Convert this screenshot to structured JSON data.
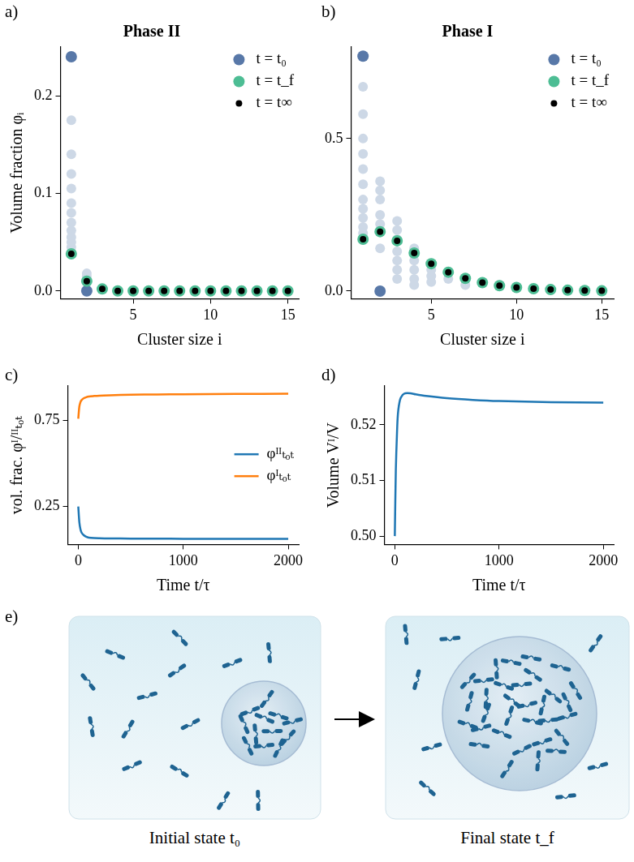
{
  "chart_data": [
    {
      "type": "scatter",
      "panel_label": "a)",
      "title": "Phase II",
      "x_label": "Cluster size i",
      "y_label": "Volume fraction φᵢ",
      "xlim": [
        0.3,
        15.7
      ],
      "xticks": [
        5,
        10,
        15
      ],
      "ylim": [
        -0.008,
        0.25
      ],
      "yticks": [
        {
          "value": 0,
          "label": "0.0"
        },
        0.1,
        0.2
      ],
      "grid": false,
      "legend": "upper right",
      "series": [
        {
          "color": "#cdd8e6",
          "x": [
            1,
            1,
            1,
            1,
            1,
            1,
            1,
            1,
            1,
            1,
            1,
            2,
            2,
            2
          ],
          "values": [
            0.175,
            0.14,
            0.12,
            0.105,
            0.09,
            0.08,
            0.07,
            0.062,
            0.055,
            0.05,
            0.045,
            0.018,
            0.015,
            0.012
          ]
        },
        {
          "name": "t = t₀",
          "color": "#5878a8",
          "x": [
            1,
            2
          ],
          "values": [
            0.24,
            0
          ]
        },
        {
          "name": "t = t_f",
          "color": "#4dbd94",
          "x": [
            1,
            2,
            3,
            4,
            5,
            6,
            7,
            8,
            9,
            10,
            11,
            12,
            13,
            14,
            15
          ],
          "values": [
            0.038,
            0.01,
            0.002,
            0,
            0,
            0,
            0,
            0,
            0,
            0,
            0,
            0,
            0,
            0,
            0
          ]
        },
        {
          "name": "t = t∞",
          "color": "#000000",
          "x": [
            1,
            2,
            3,
            4,
            5,
            6,
            7,
            8,
            9,
            10,
            11,
            12,
            13,
            14,
            15
          ],
          "values": [
            0.038,
            0.01,
            0.002,
            0,
            0,
            0,
            0,
            0,
            0,
            0,
            0,
            0,
            0,
            0,
            0
          ]
        }
      ]
    },
    {
      "type": "scatter",
      "panel_label": "b)",
      "title": "Phase I",
      "x_label": "Cluster size i",
      "xlim": [
        0.3,
        15.7
      ],
      "xticks": [
        5,
        10,
        15
      ],
      "ylim": [
        -0.025,
        0.8
      ],
      "yticks": [
        {
          "value": 0,
          "label": "0.0"
        },
        0.5
      ],
      "grid": false,
      "legend": "upper right",
      "series": [
        {
          "color": "#cdd8e6",
          "x": [
            1,
            1,
            1,
            1,
            1,
            1,
            1,
            1,
            1,
            1,
            1,
            2,
            2,
            2,
            2,
            2,
            2,
            3,
            3,
            3,
            3,
            3,
            3,
            3,
            4,
            4,
            4,
            4,
            4,
            4,
            5,
            5,
            5,
            5,
            6,
            6,
            7,
            7
          ],
          "values": [
            0.67,
            0.58,
            0.5,
            0.45,
            0.4,
            0.35,
            0.3,
            0.27,
            0.24,
            0.21,
            0.19,
            0.36,
            0.33,
            0.3,
            0.25,
            0.22,
            0.14,
            0.23,
            0.2,
            0.17,
            0.13,
            0.1,
            0.07,
            0.04,
            0.14,
            0.12,
            0.1,
            0.07,
            0.04,
            0.02,
            0.09,
            0.07,
            0.05,
            0.03,
            0.06,
            0.04,
            0.04,
            0.02
          ]
        },
        {
          "name": "t = t₀",
          "color": "#5878a8",
          "x": [
            1,
            2
          ],
          "values": [
            0.77,
            0
          ]
        },
        {
          "name": "t = t_f",
          "color": "#4dbd94",
          "x": [
            1,
            2,
            3,
            4,
            5,
            6,
            7,
            8,
            9,
            10,
            11,
            12,
            13,
            14,
            15
          ],
          "values": [
            0.17,
            0.195,
            0.165,
            0.125,
            0.09,
            0.062,
            0.042,
            0.028,
            0.018,
            0.012,
            0.008,
            0.005,
            0.003,
            0.002,
            0.001
          ]
        },
        {
          "name": "t = t∞",
          "color": "#000000",
          "x": [
            1,
            2,
            3,
            4,
            5,
            6,
            7,
            8,
            9,
            10,
            11,
            12,
            13,
            14,
            15
          ],
          "values": [
            0.17,
            0.195,
            0.165,
            0.125,
            0.09,
            0.062,
            0.042,
            0.028,
            0.018,
            0.012,
            0.008,
            0.005,
            0.003,
            0.002,
            0.001
          ]
        }
      ]
    },
    {
      "type": "line",
      "panel_label": "c)",
      "x_label": "Time t/τ",
      "y_label": "vol. frac. φᴵ/ᴵᴵₜₒₜ",
      "xlim": [
        -100,
        2100
      ],
      "xticks": [
        0,
        1000,
        2000
      ],
      "ylim": [
        0.03,
        0.95
      ],
      "yticks": [
        0.25,
        0.75
      ],
      "grid": false,
      "legend": "right",
      "x": [
        0,
        10,
        20,
        30,
        50,
        75,
        100,
        150,
        200,
        300,
        500,
        750,
        1000,
        1500,
        2000
      ],
      "series": [
        {
          "name": "φᴵᴵₜₒₜ",
          "color": "#1f77b4",
          "values": [
            0.25,
            0.16,
            0.12,
            0.1,
            0.085,
            0.075,
            0.07,
            0.067,
            0.066,
            0.065,
            0.064,
            0.064,
            0.063,
            0.063,
            0.063
          ]
        },
        {
          "name": "φᴵₜₒₜ",
          "color": "#ff7f0e",
          "values": [
            0.76,
            0.83,
            0.855,
            0.867,
            0.878,
            0.885,
            0.889,
            0.892,
            0.894,
            0.896,
            0.899,
            0.901,
            0.902,
            0.904,
            0.905
          ]
        }
      ]
    },
    {
      "type": "line",
      "panel_label": "d)",
      "x_label": "Time t/τ",
      "y_label": "Volume Vᴵ/V",
      "xlim": [
        -100,
        2100
      ],
      "xticks": [
        0,
        1000,
        2000
      ],
      "ylim": [
        0.4985,
        0.527
      ],
      "yticks": [
        {
          "value": 0.5,
          "label": "0.50"
        },
        0.51,
        0.52
      ],
      "grid": false,
      "x": [
        0,
        10,
        20,
        30,
        50,
        75,
        100,
        150,
        200,
        300,
        500,
        750,
        1000,
        1500,
        2000
      ],
      "series": [
        {
          "color": "#1f77b4",
          "values": [
            0.5,
            0.512,
            0.518,
            0.522,
            0.5245,
            0.5254,
            0.5257,
            0.5257,
            0.5255,
            0.5252,
            0.5248,
            0.5245,
            0.5243,
            0.5241,
            0.524
          ]
        }
      ]
    }
  ],
  "diagram": {
    "panel_label": "e)",
    "panels": [
      {
        "caption": "Initial state t₀"
      },
      {
        "caption": "Final state t_f"
      }
    ]
  }
}
